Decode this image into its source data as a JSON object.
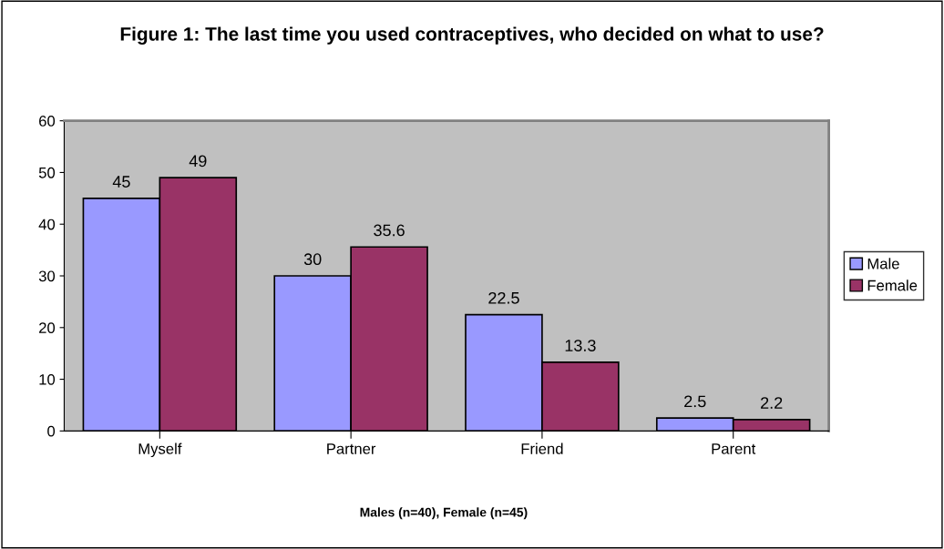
{
  "chart_data": {
    "type": "bar",
    "title": "Figure 1: The last time you used contraceptives, who decided on what to use?",
    "xlabel": "Males (n=40), Female (n=45)",
    "categories": [
      "Myself",
      "Partner",
      "Friend",
      "Parent"
    ],
    "series": [
      {
        "name": "Male",
        "color": "#9999ff",
        "values": [
          45,
          30,
          22.5,
          2.5
        ]
      },
      {
        "name": "Female",
        "color": "#993366",
        "values": [
          49,
          35.6,
          13.3,
          2.2
        ]
      }
    ],
    "ylim": [
      0,
      60
    ],
    "yticks": [
      0,
      10,
      20,
      30,
      40,
      50,
      60
    ],
    "grid": false,
    "legend": "right",
    "data_labels": true
  }
}
